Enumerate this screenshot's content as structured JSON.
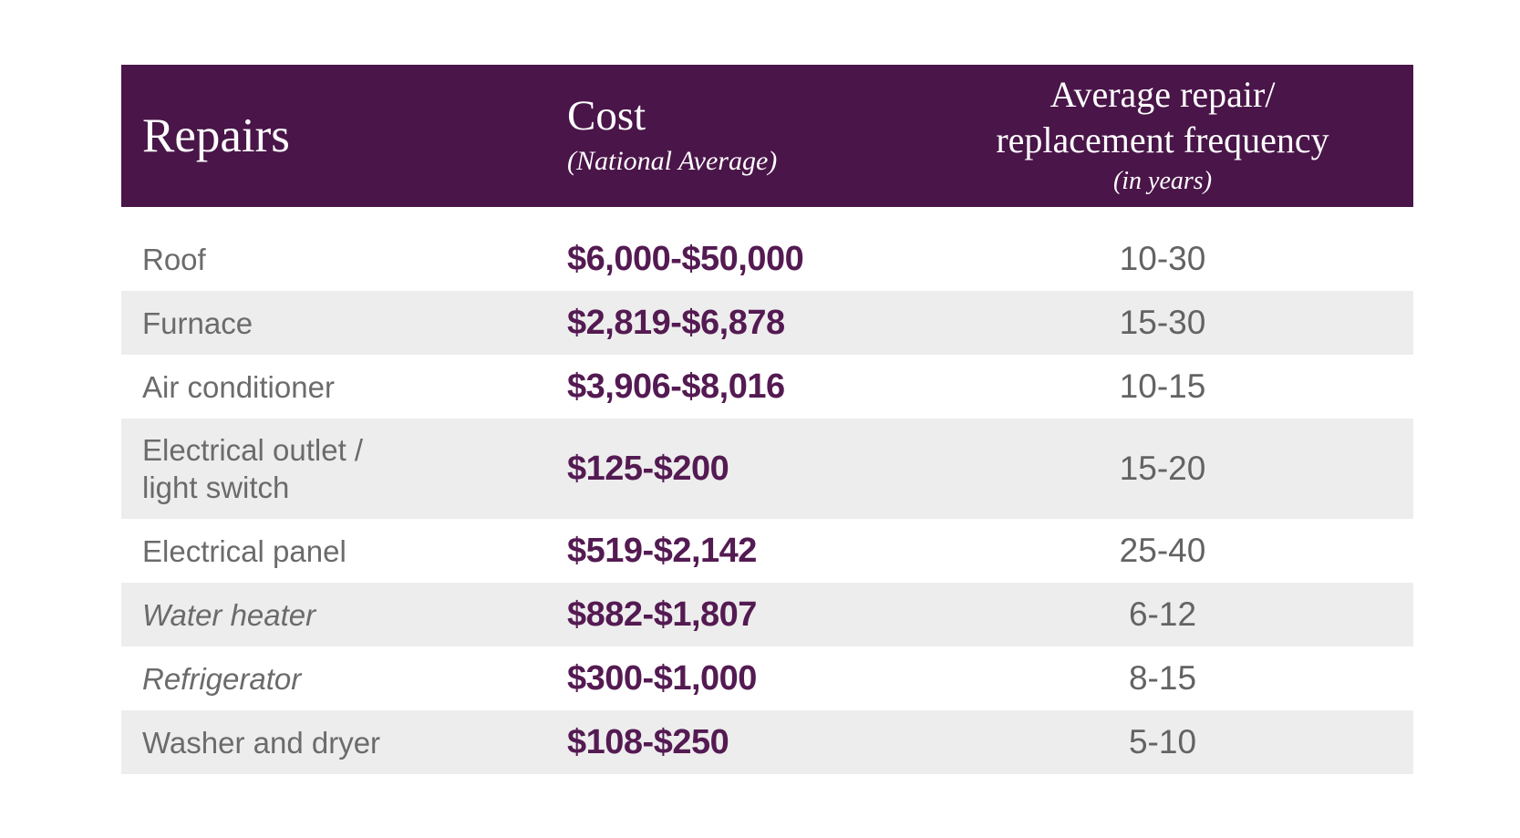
{
  "header": {
    "repairs_label": "Repairs",
    "cost_label": "Cost",
    "cost_sublabel": "(National Average)",
    "freq_line1": "Average repair/",
    "freq_line2": "replacement frequency",
    "freq_sublabel": "(in years)"
  },
  "chart_data": {
    "type": "table",
    "title": "",
    "columns": [
      "Repairs",
      "Cost (National Average)",
      "Average repair/replacement frequency (in years)"
    ],
    "rows": [
      [
        "Roof",
        "$6,000-$50,000",
        "10-30"
      ],
      [
        "Furnace",
        "$2,819-$6,878",
        "15-30"
      ],
      [
        "Air conditioner",
        "$3,906-$8,016",
        "10-15"
      ],
      [
        "Electrical outlet /\nlight switch",
        "$125-$200",
        "15-20"
      ],
      [
        "Electrical panel",
        "$519-$2,142",
        "25-40"
      ],
      [
        "Water heater",
        "$882-$1,807",
        "6-12"
      ],
      [
        "Refrigerator",
        "$300-$1,000",
        "8-15"
      ],
      [
        "Washer and dryer",
        "$108-$250",
        "5-10"
      ]
    ]
  },
  "colors": {
    "header_bg": "#4a1549",
    "stripe": "#ededed",
    "label_color": "#6b6b6b",
    "cost_color": "#541a52",
    "freq_color": "#636363"
  }
}
